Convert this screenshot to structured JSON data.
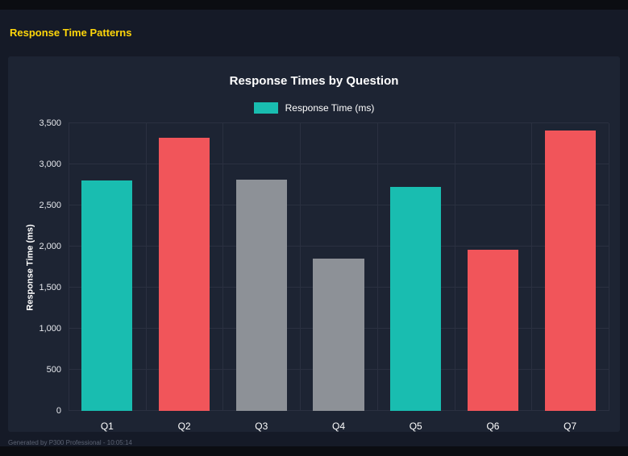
{
  "page": {
    "heading": "Response Time Patterns",
    "footer": "Generated by P300 Professional - 10:05:14"
  },
  "colors": {
    "frame_bg": "#0b0d12",
    "page_bg": "#151a27",
    "panel_bg": "#1d2433",
    "heading": "#ffd60a",
    "text": "#ffffff",
    "grid": "#2a3040",
    "footer_text": "#5c6373",
    "teal": "#19bdb0",
    "red": "#f1555a",
    "gray": "#8d9197"
  },
  "chart_data": {
    "type": "bar",
    "title": "Response Times by Question",
    "legend": [
      {
        "label": "Response Time (ms)",
        "color": "#19bdb0"
      }
    ],
    "legend_position": "top",
    "categories": [
      "Q1",
      "Q2",
      "Q3",
      "Q4",
      "Q5",
      "Q6",
      "Q7"
    ],
    "values": [
      2800,
      3325,
      2810,
      1850,
      2730,
      1960,
      3410
    ],
    "bar_colors": [
      "#19bdb0",
      "#f1555a",
      "#8d9197",
      "#8d9197",
      "#19bdb0",
      "#f1555a",
      "#f1555a"
    ],
    "xlabel": "",
    "ylabel": "Response Time (ms)",
    "ylim": [
      0,
      3500
    ],
    "yticks": [
      "0",
      "500",
      "1,000",
      "1,500",
      "2,000",
      "2,500",
      "3,000",
      "3,500"
    ],
    "grid": true
  }
}
